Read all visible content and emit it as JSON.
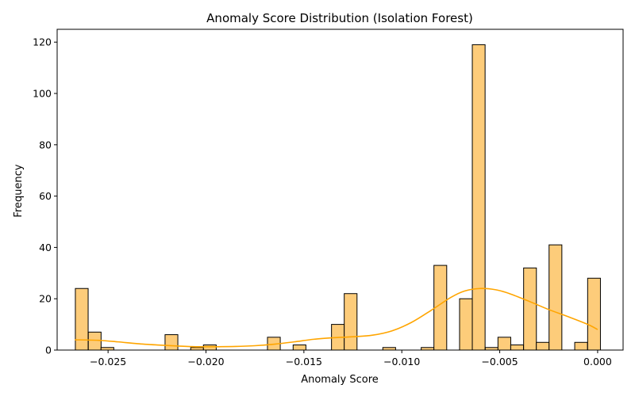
{
  "chart_data": {
    "type": "bar",
    "title": "Anomaly Score Distribution (Isolation Forest)",
    "xlabel": "Anomaly Score",
    "ylabel": "Frequency",
    "xlim": [
      -0.0276,
      0.0013
    ],
    "ylim": [
      0,
      125
    ],
    "bin_width": 0.000653,
    "xticks": [
      -0.025,
      -0.02,
      -0.015,
      -0.01,
      -0.005,
      0.0
    ],
    "xtick_labels": [
      "−0.025",
      "−0.020",
      "−0.015",
      "−0.010",
      "−0.005",
      "0.000"
    ],
    "yticks": [
      0,
      20,
      40,
      60,
      80,
      100,
      120
    ],
    "ytick_labels": [
      "0",
      "20",
      "40",
      "60",
      "80",
      "100",
      "120"
    ],
    "bins": [
      {
        "x": -0.02667,
        "count": 24
      },
      {
        "x": -0.02601,
        "count": 7
      },
      {
        "x": -0.02536,
        "count": 1
      },
      {
        "x": -0.02209,
        "count": 6
      },
      {
        "x": -0.02078,
        "count": 1
      },
      {
        "x": -0.02013,
        "count": 2
      },
      {
        "x": -0.01686,
        "count": 5
      },
      {
        "x": -0.01555,
        "count": 2
      },
      {
        "x": -0.01359,
        "count": 10
      },
      {
        "x": -0.01294,
        "count": 22
      },
      {
        "x": -0.01097,
        "count": 1
      },
      {
        "x": -0.00901,
        "count": 1
      },
      {
        "x": -0.00836,
        "count": 33
      },
      {
        "x": -0.00705,
        "count": 20
      },
      {
        "x": -0.0064,
        "count": 119
      },
      {
        "x": -0.00574,
        "count": 1
      },
      {
        "x": -0.00509,
        "count": 5
      },
      {
        "x": -0.00444,
        "count": 2
      },
      {
        "x": -0.00378,
        "count": 32
      },
      {
        "x": -0.00313,
        "count": 3
      },
      {
        "x": -0.00248,
        "count": 41
      },
      {
        "x": -0.00117,
        "count": 3
      },
      {
        "x": -0.00051,
        "count": 28
      }
    ],
    "kde": {
      "x": [
        -0.0267,
        -0.0255,
        -0.0245,
        -0.0235,
        -0.0225,
        -0.0215,
        -0.0205,
        -0.0195,
        -0.0185,
        -0.0175,
        -0.0165,
        -0.0155,
        -0.0145,
        -0.0135,
        -0.0125,
        -0.0115,
        -0.0105,
        -0.0095,
        -0.0085,
        -0.0075,
        -0.0068,
        -0.006,
        -0.0052,
        -0.0045,
        -0.0035,
        -0.0025,
        -0.0015,
        -0.0005,
        0.0
      ],
      "y": [
        4,
        3.8,
        3.2,
        2.5,
        2.0,
        1.6,
        1.3,
        1.3,
        1.4,
        1.7,
        2.3,
        3.2,
        4.2,
        4.8,
        5.2,
        5.8,
        7.5,
        10.8,
        15.5,
        20.5,
        23.0,
        24.0,
        23.5,
        22.0,
        19.0,
        15.8,
        13.0,
        10.0,
        8.0
      ]
    },
    "bar_color": "#fdcc7a",
    "bar_edge_color": "#000000",
    "kde_color": "#ffa500",
    "grid": false,
    "legend": "none"
  }
}
